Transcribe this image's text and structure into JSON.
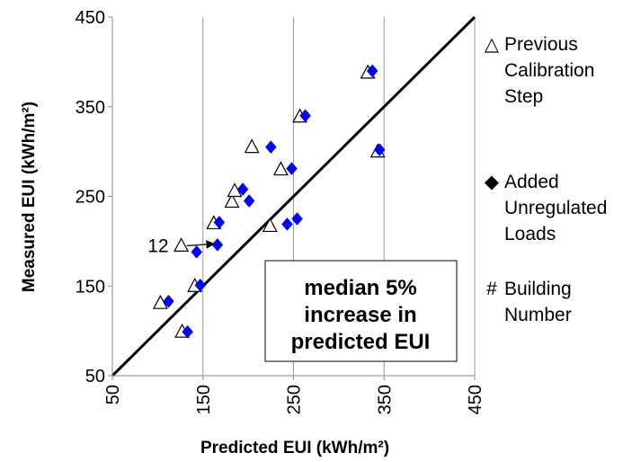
{
  "chart_data": {
    "type": "scatter",
    "title": "",
    "xlabel": "Predicted EUI (kWh/m²)",
    "ylabel": "Measured EUI (kWh/m²)",
    "xlim": [
      50,
      450
    ],
    "ylim": [
      50,
      450
    ],
    "xticks": [
      50,
      150,
      250,
      350,
      450
    ],
    "yticks": [
      50,
      150,
      250,
      350,
      450
    ],
    "grid": "vertical",
    "reference_line": {
      "from": [
        50,
        50
      ],
      "to": [
        450,
        450
      ]
    },
    "series": [
      {
        "name": "Previous Calibration Step",
        "marker": "triangle-open",
        "color": "#000000",
        "points": [
          {
            "x": 127,
            "y": 99
          },
          {
            "x": 103,
            "y": 131
          },
          {
            "x": 141,
            "y": 150
          },
          {
            "x": 126,
            "y": 195
          },
          {
            "x": 162,
            "y": 220
          },
          {
            "x": 182,
            "y": 244
          },
          {
            "x": 185,
            "y": 256
          },
          {
            "x": 224,
            "y": 217
          },
          {
            "x": 204,
            "y": 305
          },
          {
            "x": 236,
            "y": 280
          },
          {
            "x": 257,
            "y": 339
          },
          {
            "x": 332,
            "y": 388
          },
          {
            "x": 343,
            "y": 300
          }
        ]
      },
      {
        "name": "Added Unregulated Loads",
        "marker": "diamond",
        "color": "#0000ff",
        "points": [
          {
            "x": 133,
            "y": 99
          },
          {
            "x": 112,
            "y": 133
          },
          {
            "x": 147,
            "y": 151
          },
          {
            "x": 143,
            "y": 188
          },
          {
            "x": 166,
            "y": 196
          },
          {
            "x": 168,
            "y": 221
          },
          {
            "x": 201,
            "y": 245
          },
          {
            "x": 194,
            "y": 258
          },
          {
            "x": 225,
            "y": 305
          },
          {
            "x": 243,
            "y": 219
          },
          {
            "x": 254,
            "y": 225
          },
          {
            "x": 248,
            "y": 281
          },
          {
            "x": 263,
            "y": 340
          },
          {
            "x": 337,
            "y": 390
          },
          {
            "x": 345,
            "y": 302
          }
        ]
      }
    ],
    "annotations": [
      {
        "text": "12",
        "color": "#ff0000",
        "arrow_from": [
          132,
          195
        ],
        "arrow_to": [
          162,
          197
        ]
      }
    ],
    "legend": {
      "placement": "right",
      "items": [
        {
          "symbol": "△",
          "symbol_color": "#000000",
          "lines": [
            "Previous",
            "Calibration",
            "Step"
          ]
        },
        {
          "symbol": "◆",
          "symbol_color": "#0000ff",
          "lines": [
            "Added",
            "Unregulated",
            "Loads"
          ]
        },
        {
          "symbol": "#",
          "symbol_color": "#ff0000",
          "lines": [
            "Building",
            "Number"
          ]
        }
      ]
    },
    "text_box": {
      "lines": [
        "median 5%",
        "increase in",
        "predicted EUI"
      ]
    }
  }
}
